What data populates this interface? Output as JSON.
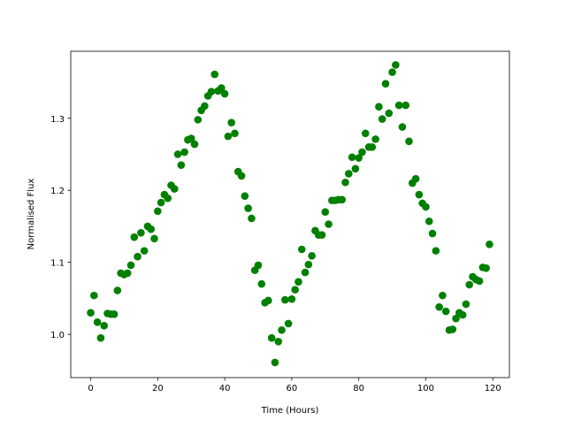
{
  "chart_data": {
    "type": "scatter",
    "xlabel": "Time (Hours)",
    "ylabel": "Normalised Flux",
    "color": "#008000",
    "x": [
      0,
      1,
      2,
      3,
      4,
      5,
      6,
      7,
      8,
      9,
      10,
      11,
      12,
      13,
      14,
      15,
      16,
      17,
      18,
      19,
      20,
      21,
      22,
      23,
      24,
      25,
      26,
      27,
      28,
      29,
      30,
      31,
      32,
      33,
      34,
      35,
      36,
      37,
      38,
      39,
      40,
      41,
      42,
      43,
      44,
      45,
      46,
      47,
      48,
      49,
      50,
      51,
      52,
      53,
      54,
      55,
      56,
      57,
      58,
      59,
      60,
      61,
      62,
      63,
      64,
      65,
      66,
      67,
      68,
      69,
      70,
      71,
      72,
      73,
      74,
      75,
      76,
      77,
      78,
      79,
      80,
      81,
      82,
      83,
      84,
      85,
      86,
      87,
      88,
      89,
      90,
      91,
      92,
      93,
      94,
      95,
      96,
      97,
      98,
      99,
      100,
      101,
      102,
      103,
      104,
      105,
      106,
      107,
      108,
      109,
      110,
      111,
      112,
      113,
      114,
      115,
      116,
      117,
      118,
      119
    ],
    "values": [
      1.03,
      1.054,
      1.017,
      0.995,
      1.012,
      1.029,
      1.028,
      1.028,
      1.061,
      1.085,
      1.083,
      1.085,
      1.096,
      1.135,
      1.108,
      1.141,
      1.116,
      1.15,
      1.146,
      1.133,
      1.171,
      1.183,
      1.194,
      1.189,
      1.207,
      1.202,
      1.25,
      1.235,
      1.253,
      1.27,
      1.272,
      1.264,
      1.298,
      1.311,
      1.317,
      1.331,
      1.337,
      1.361,
      1.338,
      1.342,
      1.334,
      1.275,
      1.294,
      1.279,
      1.226,
      1.22,
      1.192,
      1.175,
      1.161,
      1.089,
      1.096,
      1.07,
      1.044,
      1.047,
      0.995,
      0.961,
      0.99,
      1.006,
      1.048,
      1.015,
      1.049,
      1.062,
      1.073,
      1.118,
      1.086,
      1.097,
      1.109,
      1.144,
      1.138,
      1.138,
      1.17,
      1.153,
      1.186,
      1.186,
      1.187,
      1.187,
      1.211,
      1.223,
      1.246,
      1.23,
      1.245,
      1.253,
      1.279,
      1.26,
      1.26,
      1.271,
      1.316,
      1.299,
      1.348,
      1.307,
      1.364,
      1.374,
      1.318,
      1.288,
      1.318,
      1.268,
      1.21,
      1.216,
      1.194,
      1.182,
      1.177,
      1.157,
      1.14,
      1.116,
      1.038,
      1.054,
      1.032,
      1.006,
      1.007,
      1.022,
      1.03,
      1.027,
      1.042,
      1.069,
      1.08,
      1.076,
      1.074,
      1.093,
      1.092,
      1.125
    ],
    "xlim": [
      -5.95,
      124.95
    ],
    "xticks": [
      0,
      20,
      40,
      60,
      80,
      100,
      120
    ],
    "ylim": [
      0.94,
      1.393
    ],
    "yticks": [
      {
        "value": 1,
        "label": "1.0"
      },
      1.1,
      1.2,
      1.3
    ],
    "grid": false
  }
}
